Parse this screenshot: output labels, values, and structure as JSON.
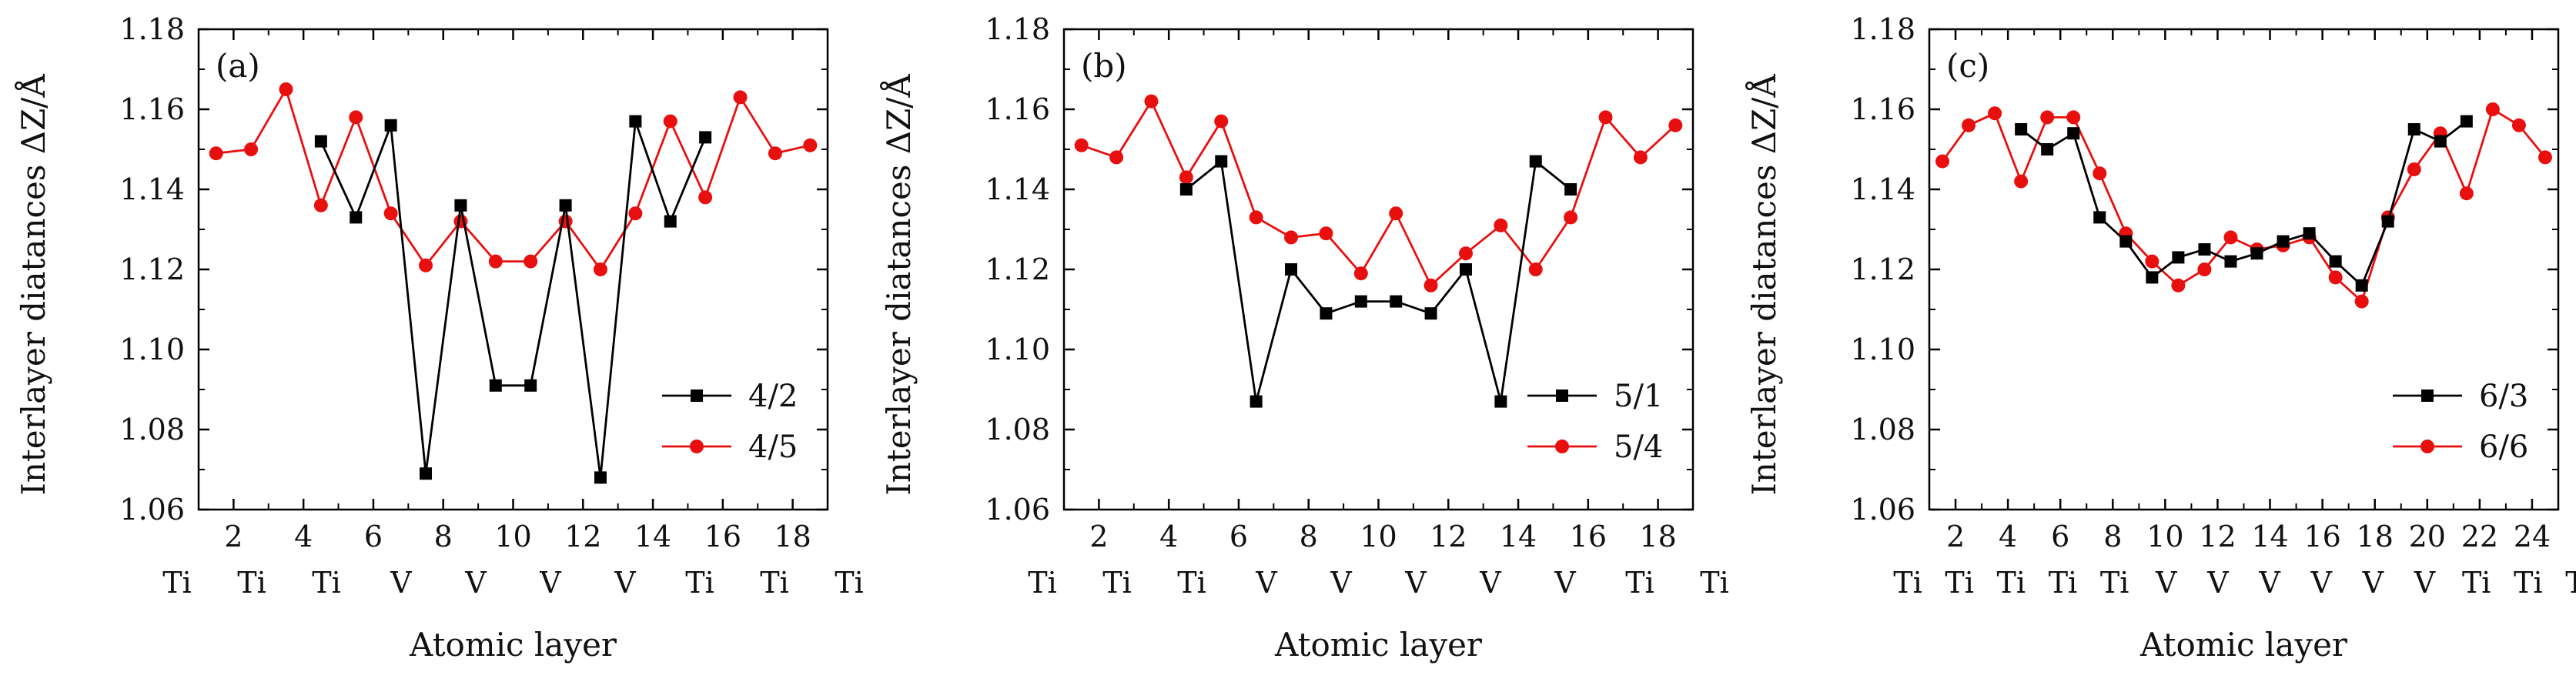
{
  "chart_data": [
    {
      "type": "line",
      "panel_label": "(a)",
      "xlabel": "Atomic layer",
      "ylabel": "Interlayer diatances ΔZ/Å",
      "ylim": [
        1.06,
        1.18
      ],
      "yticks": [
        "1.06",
        "1.08",
        "1.10",
        "1.12",
        "1.14",
        "1.16",
        "1.18"
      ],
      "xlim": [
        1,
        19
      ],
      "xticks": [
        "2",
        "4",
        "6",
        "8",
        "10",
        "12",
        "14",
        "16",
        "18"
      ],
      "xticks_values": [
        2,
        4,
        6,
        8,
        10,
        12,
        14,
        16,
        18
      ],
      "layer_labels": [
        "Ti",
        "Ti",
        "Ti",
        "V",
        "V",
        "V",
        "V",
        "Ti",
        "Ti",
        "Ti"
      ],
      "layer_positions": [
        1,
        3,
        5,
        7,
        9,
        11,
        13,
        15,
        17,
        19
      ],
      "legend": "bottom-right",
      "series": [
        {
          "name": "4/2",
          "color": "#000000",
          "marker": "square",
          "x": [
            4.5,
            5.5,
            6.5,
            7.5,
            8.5,
            9.5,
            10.5,
            11.5,
            12.5,
            13.5,
            14.5,
            15.5
          ],
          "y": [
            1.152,
            1.133,
            1.156,
            1.069,
            1.136,
            1.091,
            1.091,
            1.136,
            1.068,
            1.157,
            1.132,
            1.153
          ]
        },
        {
          "name": "4/5",
          "color": "#e8100f",
          "marker": "circle",
          "x": [
            1.5,
            2.5,
            3.5,
            4.5,
            5.5,
            6.5,
            7.5,
            8.5,
            9.5,
            10.5,
            11.5,
            12.5,
            13.5,
            14.5,
            15.5,
            16.5,
            17.5,
            18.5
          ],
          "y": [
            1.149,
            1.15,
            1.165,
            1.136,
            1.158,
            1.134,
            1.121,
            1.132,
            1.122,
            1.122,
            1.132,
            1.12,
            1.134,
            1.157,
            1.138,
            1.163,
            1.149,
            1.151
          ]
        }
      ]
    },
    {
      "type": "line",
      "panel_label": "(b)",
      "xlabel": "Atomic layer",
      "ylabel": "Interlayer diatances ΔZ/Å",
      "ylim": [
        1.06,
        1.18
      ],
      "yticks": [
        "1.06",
        "1.08",
        "1.10",
        "1.12",
        "1.14",
        "1.16",
        "1.18"
      ],
      "xlim": [
        1,
        19
      ],
      "xticks": [
        "2",
        "4",
        "6",
        "8",
        "10",
        "12",
        "14",
        "16",
        "18"
      ],
      "xticks_values": [
        2,
        4,
        6,
        8,
        10,
        12,
        14,
        16,
        18
      ],
      "layer_labels": [
        "Ti",
        "Ti",
        "Ti",
        "V",
        "V",
        "V",
        "V",
        "V",
        "Ti",
        "Ti"
      ],
      "layer_positions": [
        1,
        3,
        5,
        7,
        9,
        11,
        13,
        15,
        17,
        19
      ],
      "legend": "bottom-right",
      "series": [
        {
          "name": "5/1",
          "color": "#000000",
          "marker": "square",
          "x": [
            4.5,
            5.5,
            6.5,
            7.5,
            8.5,
            9.5,
            10.5,
            11.5,
            12.5,
            13.5,
            14.5,
            15.5
          ],
          "y": [
            1.14,
            1.147,
            1.087,
            1.12,
            1.109,
            1.112,
            1.112,
            1.109,
            1.12,
            1.087,
            1.147,
            1.14
          ]
        },
        {
          "name": "5/4",
          "color": "#e8100f",
          "marker": "circle",
          "x": [
            1.5,
            2.5,
            3.5,
            4.5,
            5.5,
            6.5,
            7.5,
            8.5,
            9.5,
            10.5,
            11.5,
            12.5,
            13.5,
            14.5,
            15.5,
            16.5,
            17.5,
            18.5
          ],
          "y": [
            1.151,
            1.148,
            1.162,
            1.143,
            1.157,
            1.133,
            1.128,
            1.129,
            1.119,
            1.134,
            1.116,
            1.124,
            1.131,
            1.12,
            1.133,
            1.158,
            1.148,
            1.156
          ]
        }
      ]
    },
    {
      "type": "line",
      "panel_label": "(c)",
      "xlabel": "Atomic layer",
      "ylabel": "Interlayer diatances ΔZ/Å",
      "ylim": [
        1.06,
        1.18
      ],
      "yticks": [
        "1.06",
        "1.08",
        "1.10",
        "1.12",
        "1.14",
        "1.16",
        "1.18"
      ],
      "xlim": [
        1,
        25
      ],
      "xticks": [
        "2",
        "4",
        "6",
        "8",
        "10",
        "12",
        "14",
        "16",
        "18",
        "20",
        "22",
        "24"
      ],
      "xticks_values": [
        2,
        4,
        6,
        8,
        10,
        12,
        14,
        16,
        18,
        20,
        22,
        24
      ],
      "layer_labels": [
        "Ti",
        "Ti",
        "Ti",
        "Ti",
        "Ti",
        "V",
        "V",
        "V",
        "V",
        "V",
        "V",
        "Ti",
        "Ti",
        "Ti"
      ],
      "layer_positions": [
        1,
        3,
        5,
        7,
        9,
        11,
        13,
        15,
        17,
        19,
        21,
        23,
        25,
        27
      ],
      "layer_positions_note": "",
      "legend": "bottom-right",
      "series": [
        {
          "name": "6/3",
          "color": "#000000",
          "marker": "square",
          "x": [
            4.5,
            5.5,
            6.5,
            7.5,
            8.5,
            9.5,
            10.5,
            11.5,
            12.5,
            13.5,
            14.5,
            15.5,
            16.5,
            17.5,
            18.5,
            19.5,
            20.5,
            21.5
          ],
          "y": [
            1.155,
            1.15,
            1.154,
            1.133,
            1.127,
            1.118,
            1.123,
            1.125,
            1.122,
            1.124,
            1.127,
            1.129,
            1.122,
            1.116,
            1.132,
            1.155,
            1.152,
            1.157
          ]
        },
        {
          "name": "6/6",
          "color": "#e8100f",
          "marker": "circle",
          "x": [
            1.5,
            2.5,
            3.5,
            4.5,
            5.5,
            6.5,
            7.5,
            8.5,
            9.5,
            10.5,
            11.5,
            12.5,
            13.5,
            14.5,
            15.5,
            16.5,
            17.5,
            18.5,
            19.5,
            20.5,
            21.5,
            22.5,
            23.5,
            24.5
          ],
          "y": [
            1.147,
            1.156,
            1.159,
            1.142,
            1.158,
            1.158,
            1.144,
            1.129,
            1.122,
            1.116,
            1.12,
            1.128,
            1.125,
            1.126,
            1.128,
            1.118,
            1.112,
            1.133,
            1.145,
            1.154,
            1.139,
            1.16,
            1.156,
            1.148
          ]
        }
      ]
    }
  ]
}
